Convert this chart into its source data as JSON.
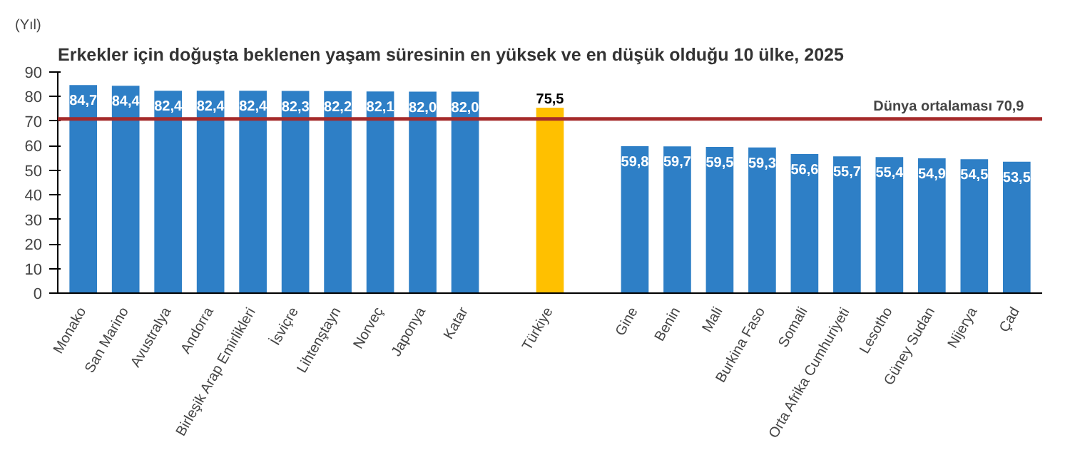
{
  "chart_data": {
    "type": "bar",
    "title": "Erkekler için doğuşta beklenen yaşam süresinin en yüksek ve en düşük olduğu 10 ülke, 2025",
    "ylabel": "(Yıl)",
    "categories": [
      "Monako",
      "San Marino",
      "Avustralya",
      "Andorra",
      "Birleşik Arap Emirlikleri",
      "İsviçre",
      "Lihtenştayn",
      "Norveç",
      "Japonya",
      "Katar",
      null,
      "Türkiye",
      null,
      "Gine",
      "Benin",
      "Mali",
      "Burkina Faso",
      "Somali",
      "Orta Afrika Cumhuriyeti",
      "Lesotho",
      "Güney Sudan",
      "Nijerya",
      "Çad"
    ],
    "values": [
      84.7,
      84.4,
      82.4,
      82.4,
      82.4,
      82.3,
      82.2,
      82.1,
      82.0,
      82.0,
      null,
      75.5,
      null,
      59.8,
      59.7,
      59.5,
      59.3,
      56.6,
      55.7,
      55.4,
      54.9,
      54.5,
      53.5
    ],
    "value_labels": [
      "84,7",
      "84,4",
      "82,4",
      "82,4",
      "82,4",
      "82,3",
      "82,2",
      "82,1",
      "82,0",
      "82,0",
      null,
      "75,5",
      null,
      "59,8",
      "59,7",
      "59,5",
      "59,3",
      "56,6",
      "55,7",
      "55,4",
      "54,9",
      "54,5",
      "53,5"
    ],
    "colors": [
      "#2e7fc6",
      "#2e7fc6",
      "#2e7fc6",
      "#2e7fc6",
      "#2e7fc6",
      "#2e7fc6",
      "#2e7fc6",
      "#2e7fc6",
      "#2e7fc6",
      "#2e7fc6",
      null,
      "#ffc000",
      null,
      "#2e7fc6",
      "#2e7fc6",
      "#2e7fc6",
      "#2e7fc6",
      "#2e7fc6",
      "#2e7fc6",
      "#2e7fc6",
      "#2e7fc6",
      "#2e7fc6",
      "#2e7fc6"
    ],
    "ylim": [
      0,
      90
    ],
    "yticks": [
      0,
      10,
      20,
      30,
      40,
      50,
      60,
      70,
      80,
      90
    ],
    "grid": false,
    "ref_lines": [
      {
        "axis": "y",
        "value": 70.9,
        "label": "Dünya ortalaması  70,9",
        "color": "#a52a2a"
      }
    ]
  }
}
